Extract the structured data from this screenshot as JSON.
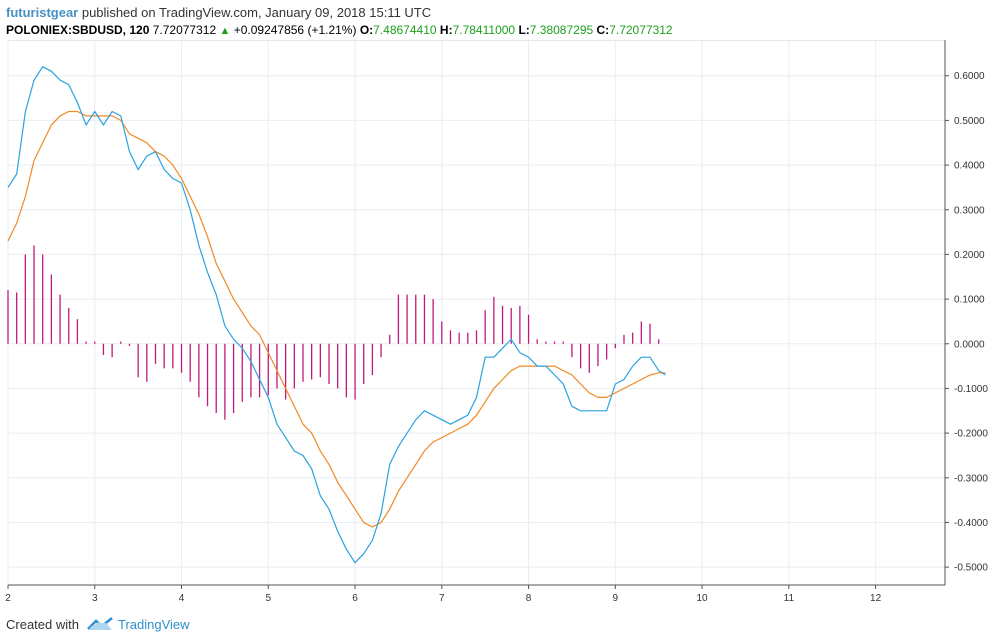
{
  "header": {
    "author": "futuristgear",
    "published_text": " published on TradingView.com, January 09, 2018 15:11 UTC",
    "symbol": "POLONIEX:SBDUSD, 120",
    "price": "7.72077312",
    "change": "+0.09247856 (+1.21%)",
    "open_label": "O:",
    "open": "7.48674410",
    "high_label": "H:",
    "high": "7.78411000",
    "low_label": "L:",
    "low": "7.38087295",
    "close_label": "C:",
    "close": "7.72077312"
  },
  "footer": {
    "created_with": "Created with",
    "brand": "TradingView"
  },
  "colors": {
    "macd": "#2aa2e0",
    "signal": "#f08a24",
    "histogram": "#c2187a",
    "grid": "#e8eef3",
    "axis": "#555555",
    "up": "#1ca01c"
  },
  "chart_data": {
    "type": "line",
    "title": "",
    "x_ticks": [
      "2",
      "3",
      "4",
      "5",
      "6",
      "7",
      "8",
      "9",
      "10",
      "11",
      "12"
    ],
    "xlim": [
      2,
      12.8
    ],
    "ylim": [
      -0.54,
      0.68
    ],
    "y_ticks": [
      "0.6000",
      "0.5000",
      "0.4000",
      "0.3000",
      "0.2000",
      "0.1000",
      "0.0000",
      "-0.1000",
      "-0.2000",
      "-0.3000",
      "-0.4000",
      "-0.5000"
    ],
    "y_tick_values": [
      0.6,
      0.5,
      0.4,
      0.3,
      0.2,
      0.1,
      0,
      -0.1,
      -0.2,
      -0.3,
      -0.4,
      -0.5
    ],
    "grid": true,
    "series": [
      {
        "color": "#2aa2e0",
        "x": [
          2,
          2.1,
          2.2,
          2.3,
          2.4,
          2.5,
          2.6,
          2.7,
          2.8,
          2.9,
          3,
          3.1,
          3.2,
          3.3,
          3.4,
          3.5,
          3.6,
          3.7,
          3.8,
          3.9,
          4,
          4.1,
          4.2,
          4.3,
          4.4,
          4.5,
          4.6,
          4.7,
          4.8,
          4.9,
          5,
          5.1,
          5.2,
          5.3,
          5.4,
          5.5,
          5.6,
          5.7,
          5.8,
          5.9,
          6,
          6.1,
          6.2,
          6.3,
          6.4,
          6.5,
          6.6,
          6.7,
          6.8,
          6.9,
          7,
          7.1,
          7.2,
          7.3,
          7.4,
          7.5,
          7.6,
          7.7,
          7.8,
          7.9,
          8,
          8.1,
          8.2,
          8.3,
          8.4,
          8.5,
          8.6,
          8.7,
          8.8,
          8.9,
          9,
          9.1,
          9.2,
          9.3,
          9.4,
          9.5,
          9.58
        ],
        "values": [
          0.35,
          0.38,
          0.52,
          0.59,
          0.62,
          0.61,
          0.59,
          0.58,
          0.54,
          0.49,
          0.52,
          0.49,
          0.52,
          0.51,
          0.43,
          0.39,
          0.42,
          0.43,
          0.39,
          0.37,
          0.36,
          0.3,
          0.22,
          0.16,
          0.11,
          0.04,
          0.01,
          -0.01,
          -0.04,
          -0.08,
          -0.12,
          -0.18,
          -0.21,
          -0.24,
          -0.25,
          -0.28,
          -0.34,
          -0.37,
          -0.42,
          -0.46,
          -0.49,
          -0.47,
          -0.44,
          -0.38,
          -0.27,
          -0.23,
          -0.2,
          -0.17,
          -0.15,
          -0.16,
          -0.17,
          -0.18,
          -0.17,
          -0.16,
          -0.12,
          -0.03,
          -0.03,
          -0.01,
          0.01,
          -0.02,
          -0.03,
          -0.05,
          -0.05,
          -0.07,
          -0.09,
          -0.14,
          -0.15,
          -0.15,
          -0.15,
          -0.15,
          -0.09,
          -0.08,
          -0.05,
          -0.03,
          -0.03,
          -0.06,
          -0.07
        ]
      },
      {
        "color": "#f08a24",
        "x": [
          2,
          2.1,
          2.2,
          2.3,
          2.4,
          2.5,
          2.6,
          2.7,
          2.8,
          2.9,
          3,
          3.1,
          3.2,
          3.3,
          3.4,
          3.5,
          3.6,
          3.7,
          3.8,
          3.9,
          4,
          4.1,
          4.2,
          4.3,
          4.4,
          4.5,
          4.6,
          4.7,
          4.8,
          4.9,
          5,
          5.1,
          5.2,
          5.3,
          5.4,
          5.5,
          5.6,
          5.7,
          5.8,
          5.9,
          6,
          6.1,
          6.2,
          6.3,
          6.4,
          6.5,
          6.6,
          6.7,
          6.8,
          6.9,
          7,
          7.1,
          7.2,
          7.3,
          7.4,
          7.5,
          7.6,
          7.7,
          7.8,
          7.9,
          8,
          8.1,
          8.2,
          8.3,
          8.4,
          8.5,
          8.6,
          8.7,
          8.8,
          8.9,
          9,
          9.1,
          9.2,
          9.3,
          9.4,
          9.5,
          9.58
        ],
        "values": [
          0.23,
          0.27,
          0.33,
          0.41,
          0.45,
          0.49,
          0.51,
          0.52,
          0.52,
          0.51,
          0.51,
          0.51,
          0.51,
          0.5,
          0.47,
          0.46,
          0.45,
          0.43,
          0.42,
          0.4,
          0.37,
          0.33,
          0.29,
          0.24,
          0.18,
          0.14,
          0.1,
          0.07,
          0.04,
          0.02,
          -0.02,
          -0.06,
          -0.1,
          -0.14,
          -0.18,
          -0.2,
          -0.24,
          -0.27,
          -0.31,
          -0.34,
          -0.37,
          -0.4,
          -0.41,
          -0.4,
          -0.37,
          -0.33,
          -0.3,
          -0.27,
          -0.24,
          -0.22,
          -0.21,
          -0.2,
          -0.19,
          -0.18,
          -0.16,
          -0.13,
          -0.1,
          -0.08,
          -0.06,
          -0.05,
          -0.05,
          -0.05,
          -0.05,
          -0.05,
          -0.06,
          -0.07,
          -0.09,
          -0.11,
          -0.12,
          -0.12,
          -0.11,
          -0.1,
          -0.09,
          -0.08,
          -0.07,
          -0.065,
          -0.065
        ]
      },
      {
        "type": "bar",
        "color": "#c2187a",
        "x": [
          2,
          2.1,
          2.2,
          2.3,
          2.4,
          2.5,
          2.6,
          2.7,
          2.8,
          2.9,
          3,
          3.1,
          3.2,
          3.3,
          3.4,
          3.5,
          3.6,
          3.7,
          3.8,
          3.9,
          4,
          4.1,
          4.2,
          4.3,
          4.4,
          4.5,
          4.6,
          4.7,
          4.8,
          4.9,
          5,
          5.1,
          5.2,
          5.3,
          5.4,
          5.5,
          5.6,
          5.7,
          5.8,
          5.9,
          6,
          6.1,
          6.2,
          6.3,
          6.4,
          6.5,
          6.6,
          6.7,
          6.8,
          6.9,
          7,
          7.1,
          7.2,
          7.3,
          7.4,
          7.5,
          7.6,
          7.7,
          7.8,
          7.9,
          8,
          8.1,
          8.2,
          8.3,
          8.4,
          8.5,
          8.6,
          8.7,
          8.8,
          8.9,
          9,
          9.1,
          9.2,
          9.3,
          9.4,
          9.5
        ],
        "values": [
          0.12,
          0.115,
          0.2,
          0.22,
          0.2,
          0.155,
          0.11,
          0.08,
          0.055,
          0.005,
          0.005,
          -0.025,
          -0.03,
          0.005,
          -0.005,
          -0.075,
          -0.085,
          -0.045,
          -0.055,
          -0.055,
          -0.065,
          -0.085,
          -0.12,
          -0.14,
          -0.155,
          -0.17,
          -0.155,
          -0.13,
          -0.12,
          -0.12,
          -0.115,
          -0.1,
          -0.125,
          -0.1,
          -0.085,
          -0.08,
          -0.075,
          -0.09,
          -0.1,
          -0.12,
          -0.125,
          -0.09,
          -0.07,
          -0.03,
          0.02,
          0.11,
          0.11,
          0.11,
          0.11,
          0.1,
          0.05,
          0.03,
          0.025,
          0.025,
          0.03,
          0.075,
          0.105,
          0.085,
          0.08,
          0.085,
          0.065,
          0.01,
          0.005,
          0.005,
          0.005,
          -0.03,
          -0.055,
          -0.065,
          -0.05,
          -0.035,
          -0.01,
          0.02,
          0.025,
          0.05,
          0.045,
          0.01
        ]
      }
    ]
  }
}
